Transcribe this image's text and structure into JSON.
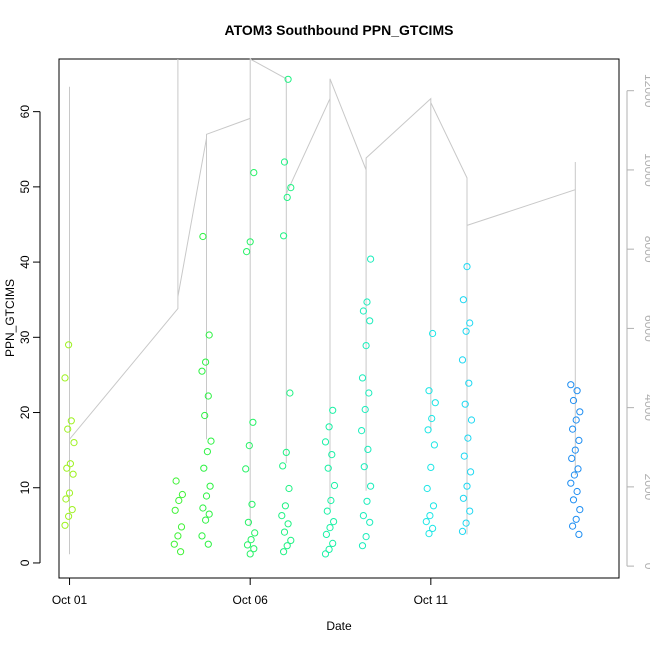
{
  "chart_data": {
    "type": "scatter",
    "title": "ATOM3 Southbound PPN_GTCIMS",
    "xlabel": "Date",
    "ylabel": "PPN_GTCIMS",
    "x_axis": {
      "type": "date",
      "min": "2023-09-30T17:00",
      "max": "2023-10-16T05:00",
      "ticks": [
        {
          "value": "2023-10-01T00:00",
          "label": "Oct 01"
        },
        {
          "value": "2023-10-06T00:00",
          "label": "Oct 06"
        },
        {
          "value": "2023-10-11T00:00",
          "label": "Oct 11"
        }
      ]
    },
    "y_left": {
      "min": -2,
      "max": 67,
      "ticks": [
        0,
        10,
        20,
        30,
        40,
        50,
        60
      ]
    },
    "y_right": {
      "min": -300,
      "max": 12800,
      "ticks": [
        0,
        2000,
        4000,
        6000,
        8000,
        10000,
        12000
      ],
      "color": "#b0b0b0"
    },
    "grid": false,
    "series": [
      {
        "kind": "points",
        "points": [
          [
            "2023-10-01T00:00",
            5.0
          ],
          [
            "2023-10-01T00:00",
            6.2
          ],
          [
            "2023-10-01T00:00",
            7.1
          ],
          [
            "2023-10-01T00:00",
            8.5
          ],
          [
            "2023-10-01T00:00",
            9.3
          ],
          [
            "2023-10-01T00:00",
            11.8
          ],
          [
            "2023-10-01T00:00",
            12.6
          ],
          [
            "2023-10-01T00:00",
            13.2
          ],
          [
            "2023-10-01T00:00",
            16.0
          ],
          [
            "2023-10-01T00:00",
            17.8
          ],
          [
            "2023-10-01T00:00",
            18.9
          ],
          [
            "2023-10-01T00:00",
            24.6
          ],
          [
            "2023-10-01T00:00",
            29.0
          ],
          [
            "2023-10-04T00:00",
            1.5
          ],
          [
            "2023-10-04T00:00",
            2.5
          ],
          [
            "2023-10-04T00:00",
            3.6
          ],
          [
            "2023-10-04T00:00",
            4.8
          ],
          [
            "2023-10-04T00:00",
            7.0
          ],
          [
            "2023-10-04T00:00",
            8.3
          ],
          [
            "2023-10-04T00:00",
            9.1
          ],
          [
            "2023-10-04T00:00",
            10.9
          ],
          [
            "2023-10-04T19:00",
            2.5
          ],
          [
            "2023-10-04T19:00",
            3.6
          ],
          [
            "2023-10-04T19:00",
            5.7
          ],
          [
            "2023-10-04T19:00",
            6.5
          ],
          [
            "2023-10-04T19:00",
            7.3
          ],
          [
            "2023-10-04T19:00",
            8.9
          ],
          [
            "2023-10-04T19:00",
            10.2
          ],
          [
            "2023-10-04T19:00",
            12.6
          ],
          [
            "2023-10-04T19:00",
            14.8
          ],
          [
            "2023-10-04T19:00",
            16.2
          ],
          [
            "2023-10-04T19:00",
            19.6
          ],
          [
            "2023-10-04T19:00",
            22.2
          ],
          [
            "2023-10-04T19:00",
            25.5
          ],
          [
            "2023-10-04T19:00",
            26.7
          ],
          [
            "2023-10-04T19:00",
            30.3
          ],
          [
            "2023-10-04T19:00",
            43.4
          ],
          [
            "2023-10-06T00:00",
            1.2
          ],
          [
            "2023-10-06T00:00",
            1.9
          ],
          [
            "2023-10-06T00:00",
            2.4
          ],
          [
            "2023-10-06T00:00",
            3.1
          ],
          [
            "2023-10-06T00:00",
            4.0
          ],
          [
            "2023-10-06T00:00",
            5.4
          ],
          [
            "2023-10-06T00:00",
            7.8
          ],
          [
            "2023-10-06T00:00",
            12.5
          ],
          [
            "2023-10-06T00:00",
            15.6
          ],
          [
            "2023-10-06T00:00",
            18.7
          ],
          [
            "2023-10-06T00:00",
            41.4
          ],
          [
            "2023-10-06T00:00",
            42.7
          ],
          [
            "2023-10-06T00:00",
            51.9
          ],
          [
            "2023-10-07T00:00",
            1.5
          ],
          [
            "2023-10-07T00:00",
            2.3
          ],
          [
            "2023-10-07T00:00",
            3.0
          ],
          [
            "2023-10-07T00:00",
            4.1
          ],
          [
            "2023-10-07T00:00",
            5.2
          ],
          [
            "2023-10-07T00:00",
            6.3
          ],
          [
            "2023-10-07T00:00",
            7.6
          ],
          [
            "2023-10-07T00:00",
            9.9
          ],
          [
            "2023-10-07T00:00",
            12.9
          ],
          [
            "2023-10-07T00:00",
            14.7
          ],
          [
            "2023-10-07T00:00",
            22.6
          ],
          [
            "2023-10-07T00:00",
            43.5
          ],
          [
            "2023-10-07T00:00",
            48.6
          ],
          [
            "2023-10-07T00:00",
            49.9
          ],
          [
            "2023-10-07T00:00",
            53.3
          ],
          [
            "2023-10-07T00:00",
            64.3
          ],
          [
            "2023-10-08T05:00",
            1.2
          ],
          [
            "2023-10-08T05:00",
            1.8
          ],
          [
            "2023-10-08T05:00",
            2.6
          ],
          [
            "2023-10-08T05:00",
            3.8
          ],
          [
            "2023-10-08T05:00",
            4.7
          ],
          [
            "2023-10-08T05:00",
            5.5
          ],
          [
            "2023-10-08T05:00",
            6.9
          ],
          [
            "2023-10-08T05:00",
            8.3
          ],
          [
            "2023-10-08T05:00",
            10.3
          ],
          [
            "2023-10-08T05:00",
            12.6
          ],
          [
            "2023-10-08T05:00",
            14.4
          ],
          [
            "2023-10-08T05:00",
            16.1
          ],
          [
            "2023-10-08T05:00",
            18.1
          ],
          [
            "2023-10-08T05:00",
            20.3
          ],
          [
            "2023-10-09T05:00",
            2.3
          ],
          [
            "2023-10-09T05:00",
            3.5
          ],
          [
            "2023-10-09T05:00",
            5.4
          ],
          [
            "2023-10-09T05:00",
            6.3
          ],
          [
            "2023-10-09T05:00",
            8.2
          ],
          [
            "2023-10-09T05:00",
            10.2
          ],
          [
            "2023-10-09T05:00",
            12.8
          ],
          [
            "2023-10-09T05:00",
            15.1
          ],
          [
            "2023-10-09T05:00",
            17.6
          ],
          [
            "2023-10-09T05:00",
            20.4
          ],
          [
            "2023-10-09T05:00",
            22.6
          ],
          [
            "2023-10-09T05:00",
            24.6
          ],
          [
            "2023-10-09T05:00",
            28.9
          ],
          [
            "2023-10-09T05:00",
            32.2
          ],
          [
            "2023-10-09T05:00",
            33.5
          ],
          [
            "2023-10-09T05:00",
            34.7
          ],
          [
            "2023-10-09T05:00",
            40.4
          ],
          [
            "2023-10-11T00:00",
            3.9
          ],
          [
            "2023-10-11T00:00",
            4.6
          ],
          [
            "2023-10-11T00:00",
            5.5
          ],
          [
            "2023-10-11T00:00",
            6.3
          ],
          [
            "2023-10-11T00:00",
            7.6
          ],
          [
            "2023-10-11T00:00",
            9.9
          ],
          [
            "2023-10-11T00:00",
            12.7
          ],
          [
            "2023-10-11T00:00",
            15.7
          ],
          [
            "2023-10-11T00:00",
            17.7
          ],
          [
            "2023-10-11T00:00",
            19.2
          ],
          [
            "2023-10-11T00:00",
            21.3
          ],
          [
            "2023-10-11T00:00",
            22.9
          ],
          [
            "2023-10-11T00:00",
            30.5
          ],
          [
            "2023-10-12T00:00",
            4.2
          ],
          [
            "2023-10-12T00:00",
            5.3
          ],
          [
            "2023-10-12T00:00",
            6.9
          ],
          [
            "2023-10-12T00:00",
            8.6
          ],
          [
            "2023-10-12T00:00",
            10.2
          ],
          [
            "2023-10-12T00:00",
            12.1
          ],
          [
            "2023-10-12T00:00",
            14.2
          ],
          [
            "2023-10-12T00:00",
            16.6
          ],
          [
            "2023-10-12T00:00",
            19.0
          ],
          [
            "2023-10-12T00:00",
            21.1
          ],
          [
            "2023-10-12T00:00",
            23.9
          ],
          [
            "2023-10-12T00:00",
            27.0
          ],
          [
            "2023-10-12T00:00",
            30.8
          ],
          [
            "2023-10-12T00:00",
            31.9
          ],
          [
            "2023-10-12T00:00",
            35.0
          ],
          [
            "2023-10-12T00:00",
            39.4
          ],
          [
            "2023-10-15T00:00",
            3.8
          ],
          [
            "2023-10-15T00:00",
            4.9
          ],
          [
            "2023-10-15T00:00",
            5.8
          ],
          [
            "2023-10-15T00:00",
            7.1
          ],
          [
            "2023-10-15T00:00",
            8.4
          ],
          [
            "2023-10-15T00:00",
            9.5
          ],
          [
            "2023-10-15T00:00",
            10.6
          ],
          [
            "2023-10-15T00:00",
            11.7
          ],
          [
            "2023-10-15T00:00",
            12.5
          ],
          [
            "2023-10-15T00:00",
            13.9
          ],
          [
            "2023-10-15T00:00",
            15.0
          ],
          [
            "2023-10-15T00:00",
            16.3
          ],
          [
            "2023-10-15T00:00",
            17.8
          ],
          [
            "2023-10-15T00:00",
            19.0
          ],
          [
            "2023-10-15T00:00",
            20.1
          ],
          [
            "2023-10-15T00:00",
            21.6
          ],
          [
            "2023-10-15T00:00",
            22.9
          ],
          [
            "2023-10-15T00:00",
            23.7
          ]
        ],
        "color_scale": [
          "#9ef21f",
          "#2ff23a",
          "#19f2a0",
          "#1ee4f2",
          "#1e8ef2"
        ]
      },
      {
        "kind": "line",
        "axis": "right",
        "color": "#c8c8c8",
        "points": [
          [
            "2023-10-01T00:00",
            300
          ],
          [
            "2023-10-01T00:00",
            12100
          ],
          [
            "2023-10-01T00:00",
            3200
          ],
          [
            "2023-10-04T00:00",
            6500
          ],
          [
            "2023-10-04T00:00",
            12800
          ],
          [
            "2023-10-04T00:00",
            6800
          ],
          [
            "2023-10-04T19:00",
            10800
          ],
          [
            "2023-10-04T19:00",
            3200
          ],
          [
            "2023-10-04T19:00",
            10900
          ],
          [
            "2023-10-06T00:00",
            11300
          ],
          [
            "2023-10-06T00:00",
            1000
          ],
          [
            "2023-10-06T00:00",
            12800
          ],
          [
            "2023-10-07T00:00",
            12300
          ],
          [
            "2023-10-07T00:00",
            2600
          ],
          [
            "2023-10-07T00:00",
            9400
          ],
          [
            "2023-10-08T05:00",
            11800
          ],
          [
            "2023-10-08T05:00",
            1400
          ],
          [
            "2023-10-08T05:00",
            12300
          ],
          [
            "2023-10-09T05:00",
            10000
          ],
          [
            "2023-10-09T05:00",
            1900
          ],
          [
            "2023-10-09T05:00",
            10300
          ],
          [
            "2023-10-11T00:00",
            11800
          ],
          [
            "2023-10-11T00:00",
            3400
          ],
          [
            "2023-10-11T00:00",
            11700
          ],
          [
            "2023-10-12T00:00",
            9800
          ],
          [
            "2023-10-12T00:00",
            800
          ],
          [
            "2023-10-12T00:00",
            8600
          ],
          [
            "2023-10-15T00:00",
            9500
          ],
          [
            "2023-10-15T00:00",
            2300
          ],
          [
            "2023-10-15T00:00",
            10200
          ]
        ]
      }
    ]
  }
}
